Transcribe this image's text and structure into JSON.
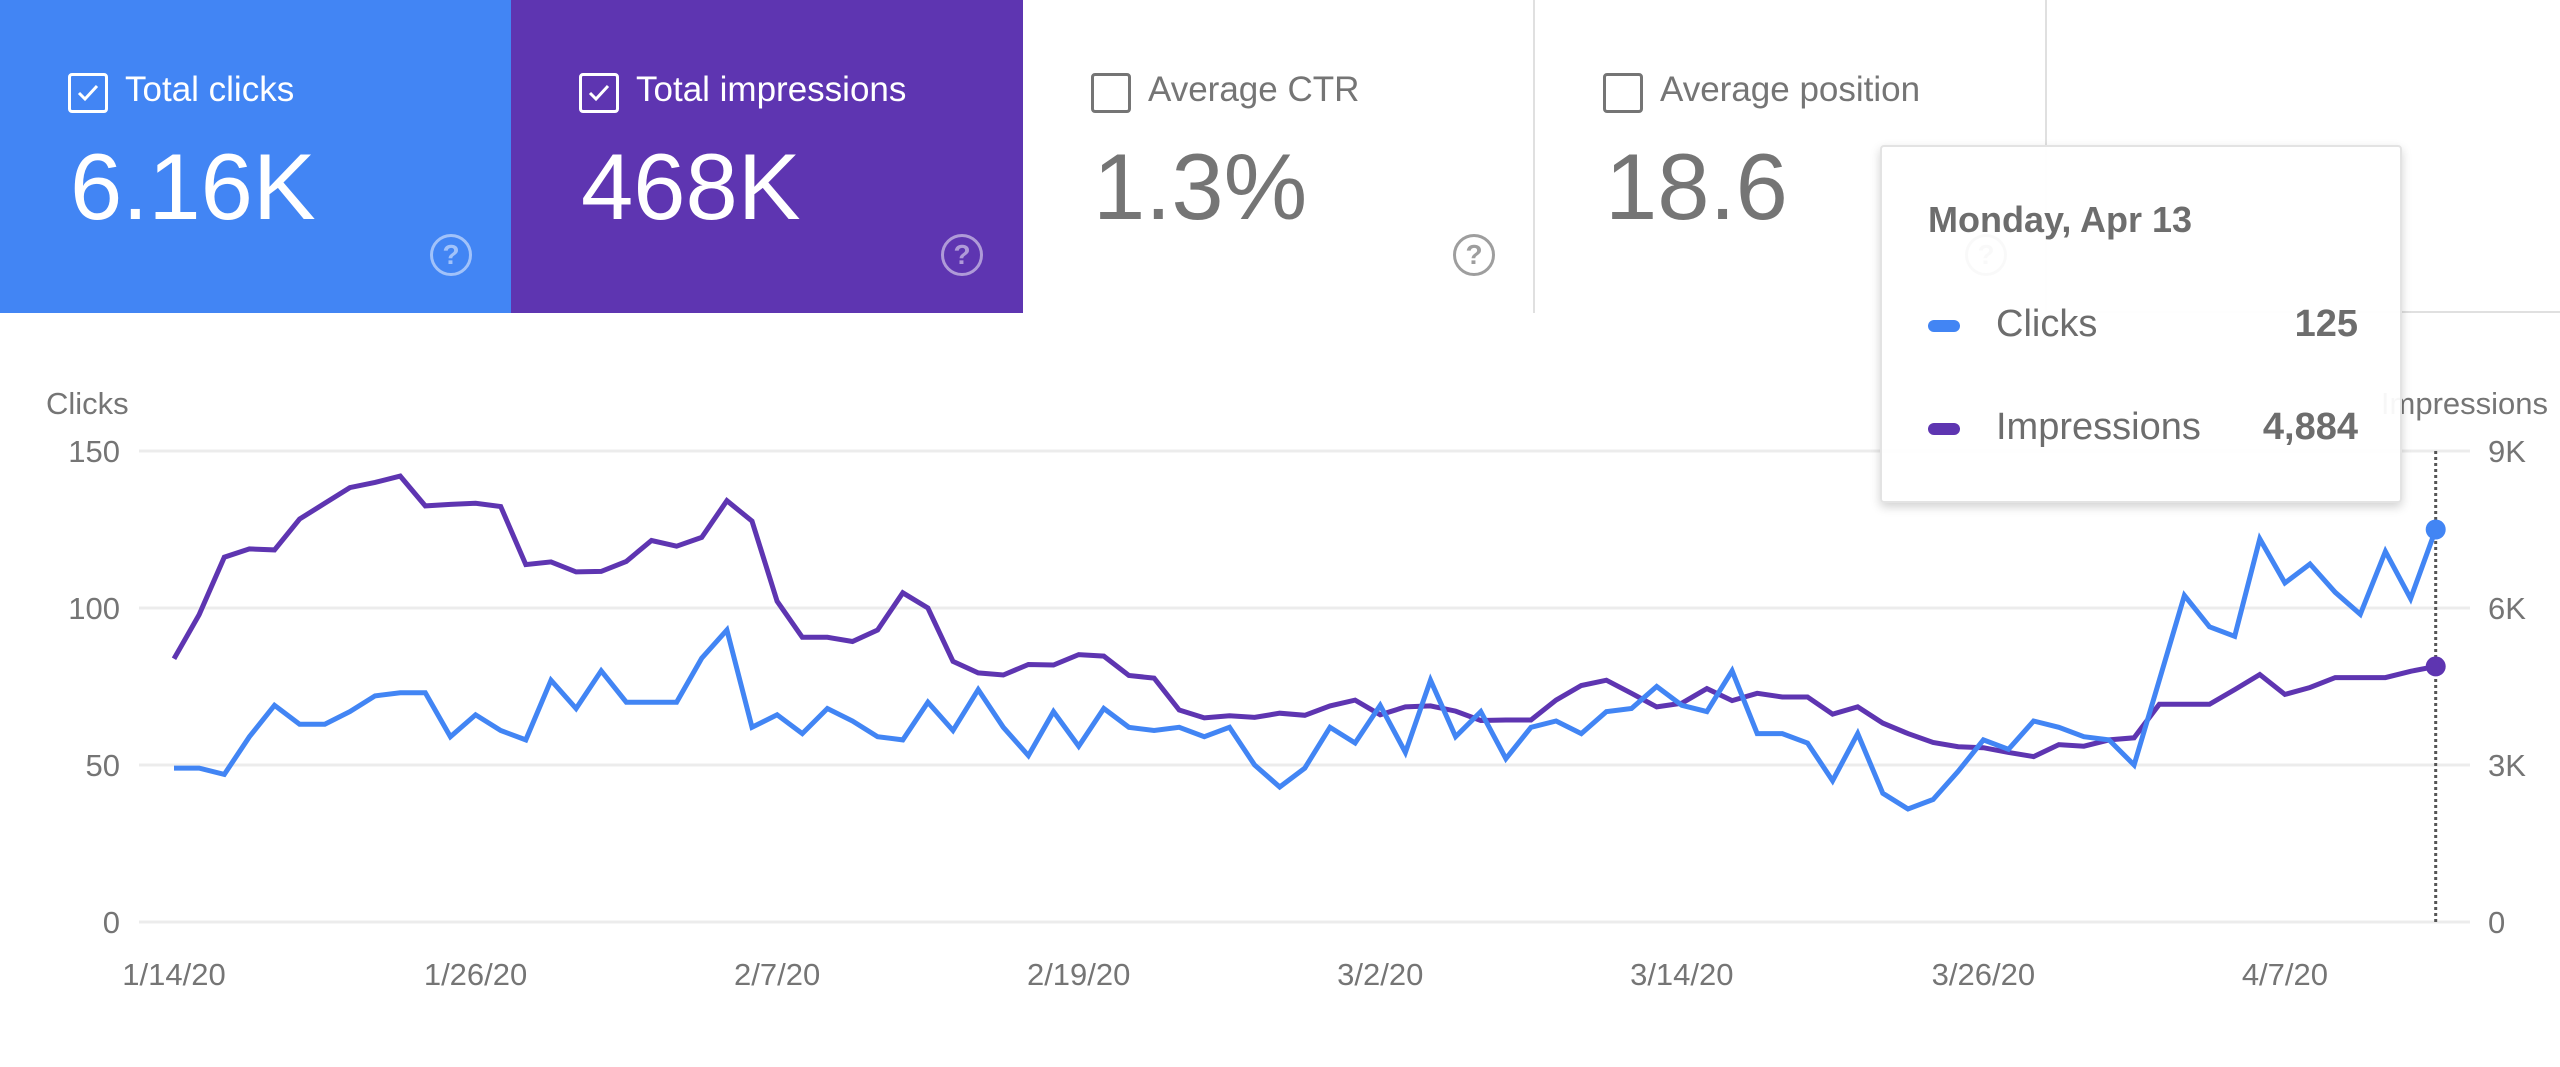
{
  "metric_cards": [
    {
      "label": "Total clicks",
      "value": "6.16K",
      "checked": true,
      "color": "#4285F4",
      "help_icon": "help-circle-icon",
      "help_glyph": "?"
    },
    {
      "label": "Total impressions",
      "value": "468K",
      "checked": true,
      "color": "#5E35B1",
      "help_icon": "help-circle-icon",
      "help_glyph": "?"
    },
    {
      "label": "Average CTR",
      "value": "1.3%",
      "checked": false,
      "color": "#ffffff",
      "help_icon": "help-circle-icon",
      "help_glyph": "?"
    },
    {
      "label": "Average position",
      "value": "18.6",
      "checked": false,
      "color": "#ffffff",
      "help_icon": "help-circle-icon",
      "help_glyph": "?"
    }
  ],
  "tooltip": {
    "title": "Monday, Apr 13",
    "rows": [
      {
        "label": "Clicks",
        "value": "125",
        "color": "#4285F4"
      },
      {
        "label": "Impressions",
        "value": "4,884",
        "color": "#5E35B1"
      }
    ]
  },
  "chart_data": {
    "type": "line",
    "title": "",
    "x_start": "1/14/20",
    "x_end": "4/13/20",
    "x_tick_labels": [
      "1/14/20",
      "1/26/20",
      "2/7/20",
      "2/19/20",
      "3/2/20",
      "3/14/20",
      "3/26/20",
      "4/7/20"
    ],
    "x_tick_indices": [
      0,
      12,
      24,
      36,
      48,
      60,
      72,
      84
    ],
    "left_axis": {
      "label": "Clicks",
      "ylim": [
        0,
        150
      ],
      "ticks": [
        0,
        50,
        100,
        150
      ],
      "tick_labels": [
        "0",
        "50",
        "100",
        "150"
      ]
    },
    "right_axis": {
      "label": "Impressions",
      "ylim": [
        0,
        9000
      ],
      "ticks": [
        0,
        3000,
        6000,
        9000
      ],
      "tick_labels": [
        "0",
        "3K",
        "6K",
        "9K"
      ]
    },
    "grid": true,
    "highlight_index": 90,
    "series": [
      {
        "name": "Clicks",
        "axis": "left",
        "color": "#4285F4",
        "values": [
          49,
          49,
          47,
          59,
          69,
          63,
          63,
          67,
          72,
          73,
          73,
          59,
          66,
          61,
          58,
          77,
          68,
          80,
          70,
          70,
          70,
          84,
          93,
          62,
          66,
          60,
          68,
          64,
          59,
          58,
          70,
          61,
          74,
          62,
          53,
          67,
          56,
          68,
          62,
          61,
          62,
          59,
          62,
          50,
          43,
          49,
          62,
          57,
          69,
          54,
          77,
          59,
          67,
          52,
          62,
          64,
          60,
          67,
          68,
          75,
          69,
          67,
          80,
          60,
          60,
          57,
          45,
          60,
          41,
          36,
          39,
          48,
          58,
          55,
          64,
          62,
          59,
          58,
          50,
          77,
          104,
          94,
          91,
          122,
          108,
          114,
          105,
          98,
          118,
          103,
          125
        ]
      },
      {
        "name": "Impressions",
        "axis": "right",
        "color": "#5E35B1",
        "values": [
          5030,
          5870,
          6970,
          7130,
          7110,
          7700,
          8000,
          8300,
          8400,
          8520,
          7950,
          7980,
          8000,
          7940,
          6830,
          6880,
          6690,
          6700,
          6890,
          7290,
          7180,
          7350,
          8050,
          7660,
          6130,
          5440,
          5440,
          5360,
          5580,
          6290,
          6000,
          4980,
          4760,
          4720,
          4920,
          4910,
          5110,
          5080,
          4710,
          4660,
          4050,
          3900,
          3940,
          3910,
          3990,
          3950,
          4130,
          4240,
          3960,
          4110,
          4130,
          4030,
          3850,
          3860,
          3860,
          4240,
          4520,
          4620,
          4370,
          4110,
          4180,
          4460,
          4230,
          4370,
          4300,
          4300,
          3970,
          4110,
          3800,
          3600,
          3430,
          3350,
          3330,
          3240,
          3160,
          3390,
          3360,
          3480,
          3520,
          4160,
          4160,
          4160,
          4440,
          4730,
          4350,
          4480,
          4670,
          4670,
          4670,
          4790,
          4884
        ]
      }
    ]
  }
}
